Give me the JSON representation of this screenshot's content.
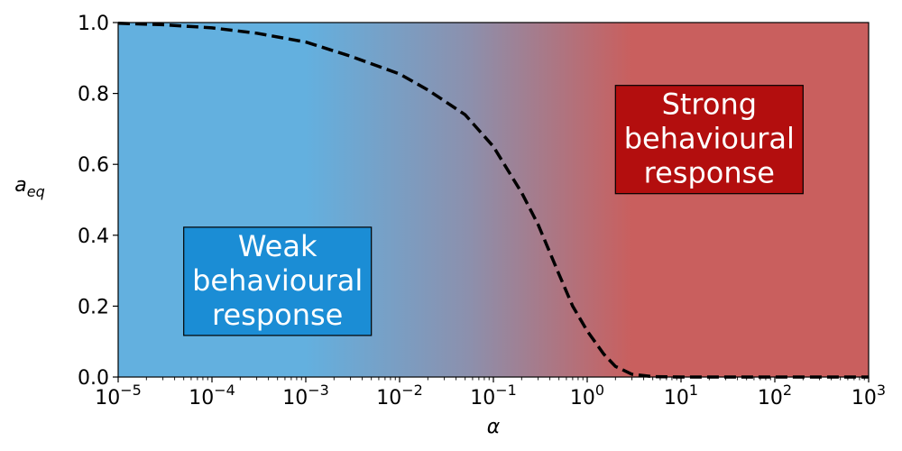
{
  "chart_data": {
    "type": "line",
    "xlabel": "α",
    "ylabel_base": "a",
    "ylabel_sub": "eq",
    "xscale": "log",
    "xlim": [
      1e-05,
      1000
    ],
    "ylim": [
      0,
      1
    ],
    "grid": false,
    "x_ticks": [
      {
        "value": 1e-05,
        "base": "10",
        "exp": "−5"
      },
      {
        "value": 0.0001,
        "base": "10",
        "exp": "−4"
      },
      {
        "value": 0.001,
        "base": "10",
        "exp": "−3"
      },
      {
        "value": 0.01,
        "base": "10",
        "exp": "−2"
      },
      {
        "value": 0.1,
        "base": "10",
        "exp": "−1"
      },
      {
        "value": 1,
        "base": "10",
        "exp": "0"
      },
      {
        "value": 10,
        "base": "10",
        "exp": "1"
      },
      {
        "value": 100,
        "base": "10",
        "exp": "2"
      },
      {
        "value": 1000,
        "base": "10",
        "exp": "3"
      }
    ],
    "y_ticks": [
      {
        "value": 0.0,
        "label": "0.0"
      },
      {
        "value": 0.2,
        "label": "0.2"
      },
      {
        "value": 0.4,
        "label": "0.4"
      },
      {
        "value": 0.6,
        "label": "0.6"
      },
      {
        "value": 0.8,
        "label": "0.8"
      },
      {
        "value": 1.0,
        "label": "1.0"
      }
    ],
    "series": [
      {
        "line_style": "dashed",
        "color": "#000000",
        "x": [
          1e-05,
          3e-05,
          0.0001,
          0.0003,
          0.001,
          0.003,
          0.01,
          0.02,
          0.05,
          0.1,
          0.2,
          0.3,
          0.5,
          0.7,
          1,
          1.5,
          2,
          3,
          5,
          10,
          100,
          1000
        ],
        "y": [
          0.998,
          0.994,
          0.985,
          0.97,
          0.945,
          0.905,
          0.855,
          0.81,
          0.74,
          0.65,
          0.52,
          0.43,
          0.29,
          0.2,
          0.13,
          0.065,
          0.03,
          0.008,
          0.001,
          0.0,
          0.0,
          0.0
        ]
      }
    ],
    "background_gradient": {
      "low_color": "#63b0df",
      "mid_color": "#8c90ad",
      "high_color": "#c95f5e",
      "transition_from": 0.001,
      "transition_to": 3
    },
    "annotations": [
      {
        "lines": [
          "Weak",
          "behavioural",
          "response"
        ],
        "box_color": "#1b8dd5",
        "text_color": "#ffffff",
        "center_x": 0.0005,
        "center_y": 0.27
      },
      {
        "lines": [
          "Strong",
          "behavioural",
          "response"
        ],
        "box_color": "#b30e0e",
        "text_color": "#ffffff",
        "center_x": 20,
        "center_y": 0.67
      }
    ]
  }
}
